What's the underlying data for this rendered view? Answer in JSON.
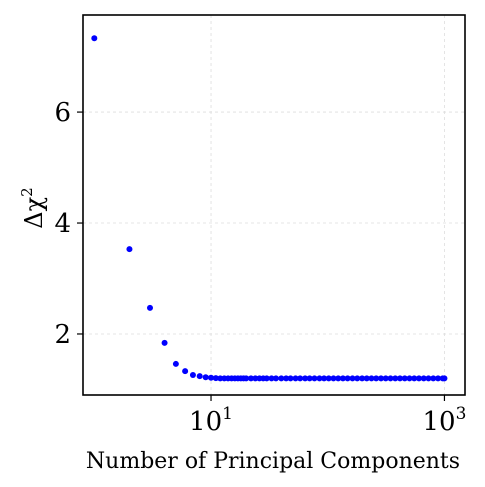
{
  "chart_data": {
    "type": "scatter",
    "title": "",
    "xlabel": "Number of Principal Components",
    "ylabel_base": "Δχ",
    "ylabel_exp": "2",
    "xscale": "log",
    "xlim": [
      0.8,
      1500
    ],
    "ylim": [
      0.9,
      7.75
    ],
    "grid": true,
    "marker_color": "#0000ff",
    "grid_color": "#dddddd",
    "x_ticks": [
      {
        "value": 10,
        "base": "10",
        "exp": "1"
      },
      {
        "value": 1000,
        "base": "10",
        "exp": "3"
      }
    ],
    "y_ticks": [
      {
        "value": 2,
        "label": "2"
      },
      {
        "value": 4,
        "label": "4"
      },
      {
        "value": 6,
        "label": "6"
      }
    ],
    "series": [
      {
        "x": [
          1,
          2,
          3,
          4,
          5,
          6,
          7,
          8,
          9,
          10,
          11,
          12,
          13,
          14,
          15,
          16,
          17,
          18,
          19,
          20,
          22,
          24,
          26,
          28,
          30,
          33,
          36,
          40,
          44,
          48,
          53,
          58,
          64,
          70,
          77,
          85,
          93,
          102,
          112,
          123,
          135,
          148,
          163,
          179,
          197,
          216,
          237,
          260,
          286,
          314,
          345,
          379,
          416,
          457,
          502,
          551,
          605,
          665,
          730,
          802,
          881,
          967,
          1000
        ],
        "y": [
          7.33,
          3.53,
          2.47,
          1.84,
          1.46,
          1.33,
          1.26,
          1.24,
          1.22,
          1.21,
          1.205,
          1.2,
          1.2,
          1.2,
          1.2,
          1.2,
          1.2,
          1.2,
          1.2,
          1.2,
          1.2,
          1.2,
          1.2,
          1.2,
          1.2,
          1.2,
          1.2,
          1.2,
          1.2,
          1.2,
          1.2,
          1.2,
          1.2,
          1.2,
          1.2,
          1.2,
          1.2,
          1.2,
          1.2,
          1.2,
          1.2,
          1.2,
          1.2,
          1.2,
          1.2,
          1.2,
          1.2,
          1.2,
          1.2,
          1.2,
          1.2,
          1.2,
          1.2,
          1.2,
          1.2,
          1.2,
          1.2,
          1.2,
          1.2,
          1.2,
          1.2,
          1.2,
          1.2
        ]
      }
    ]
  }
}
